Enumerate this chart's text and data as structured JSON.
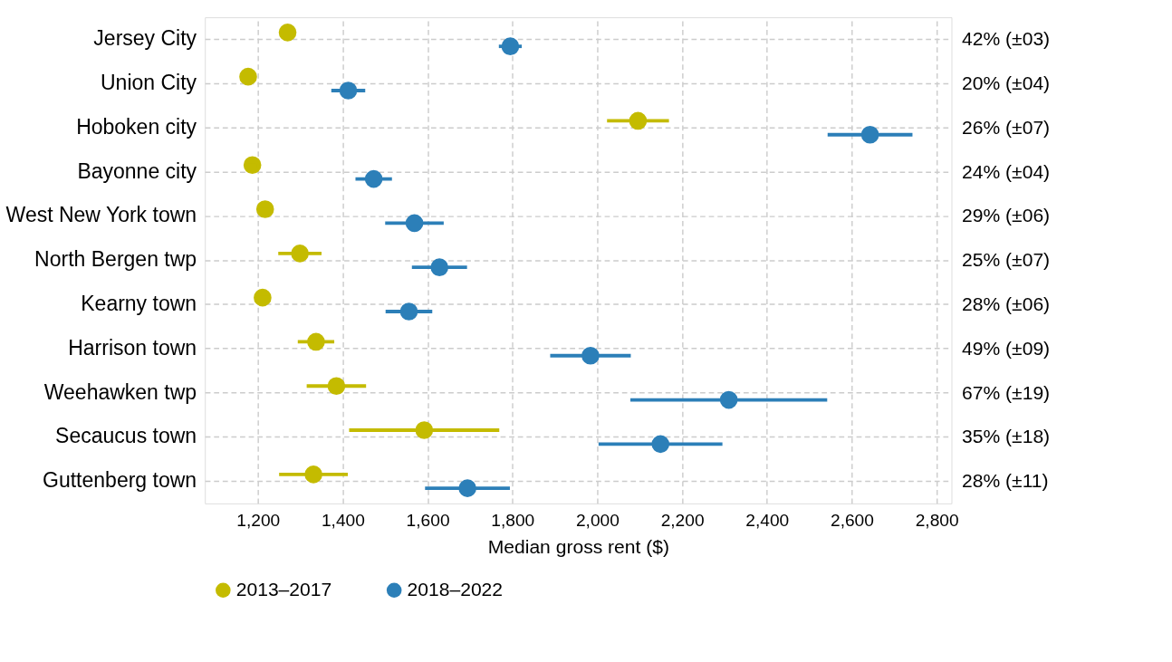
{
  "chart_data": {
    "type": "scatter",
    "orientation": "horizontal",
    "xlabel": "Median gross rent ($)",
    "categories": [
      "Jersey City",
      "Union City",
      "Hoboken city",
      "Bayonne city",
      "West New York town",
      "North Bergen twp",
      "Kearny town",
      "Harrison town",
      "Weehawken twp",
      "Secaucus town",
      "Guttenberg town"
    ],
    "series": [
      {
        "name": "2013–2017",
        "color": "#c4bb00",
        "values": [
          1270,
          1177,
          2096,
          1187,
          1217,
          1299,
          1211,
          1337,
          1385,
          1592,
          1331
        ],
        "errors": [
          null,
          null,
          73,
          10,
          13,
          51,
          13,
          43,
          70,
          177,
          81
        ]
      },
      {
        "name": "2018–2022",
        "color": "#2c7fb8",
        "values": [
          1795,
          1413,
          2643,
          1473,
          1569,
          1628,
          1556,
          1984,
          2310,
          2149,
          1694
        ],
        "errors": [
          27,
          40,
          100,
          43,
          69,
          65,
          55,
          95,
          232,
          146,
          100
        ]
      }
    ],
    "xlim": [
      1075,
      2835
    ],
    "xticks": [
      {
        "value": 1200,
        "label": "1,200"
      },
      {
        "value": 1400,
        "label": "1,400"
      },
      {
        "value": 1600,
        "label": "1,600"
      },
      {
        "value": 1800,
        "label": "1,800"
      },
      {
        "value": 2000,
        "label": "2,000"
      },
      {
        "value": 2200,
        "label": "2,200"
      },
      {
        "value": 2400,
        "label": "2,400"
      },
      {
        "value": 2600,
        "label": "2,600"
      },
      {
        "value": 2800,
        "label": "2,800"
      }
    ],
    "annotations": [
      "42% (±03)",
      "20% (±04)",
      "26% (±07)",
      "24% (±04)",
      "29% (±06)",
      "25% (±07)",
      "28% (±06)",
      "49% (±09)",
      "67% (±19)",
      "35% (±18)",
      "28% (±11)"
    ],
    "grid": true,
    "legend": "bottom",
    "marker": "circle"
  }
}
